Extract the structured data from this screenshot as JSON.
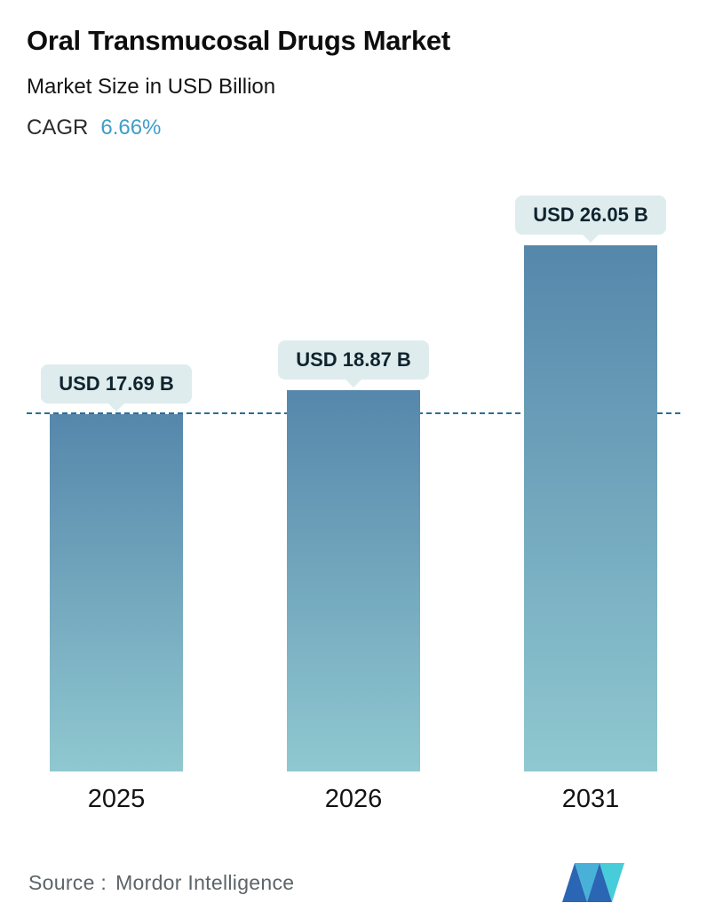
{
  "header": {
    "title": "Oral Transmucosal Drugs Market",
    "subtitle": "Market Size in USD Billion",
    "cagr_label": "CAGR",
    "cagr_value": "6.66%",
    "accent_color": "#3f9dc9"
  },
  "chart_data": {
    "type": "bar",
    "title": "Oral Transmucosal Drugs Market",
    "ylabel": "Market Size in USD Billion",
    "categories": [
      "2025",
      "2026",
      "2031"
    ],
    "values": [
      17.69,
      18.87,
      26.05
    ],
    "value_labels": [
      "USD 17.69 B",
      "USD 18.87 B",
      "USD 26.05 B"
    ],
    "ylim": [
      0,
      26.05
    ],
    "reference_line": {
      "value": 17.69,
      "style": "dashed",
      "color": "#2e6d94"
    },
    "bar_gradient_top": "#5587ab",
    "bar_gradient_bottom": "#90c8d0",
    "label_pill_bg": "#dfecee",
    "grid": false,
    "legend": false
  },
  "footer": {
    "source_label": "Source :",
    "source_value": "Mordor Intelligence",
    "logo_name": "mordor-intelligence-logo",
    "logo_blue": "#2a66b3",
    "logo_teal": "#47ccd9"
  }
}
